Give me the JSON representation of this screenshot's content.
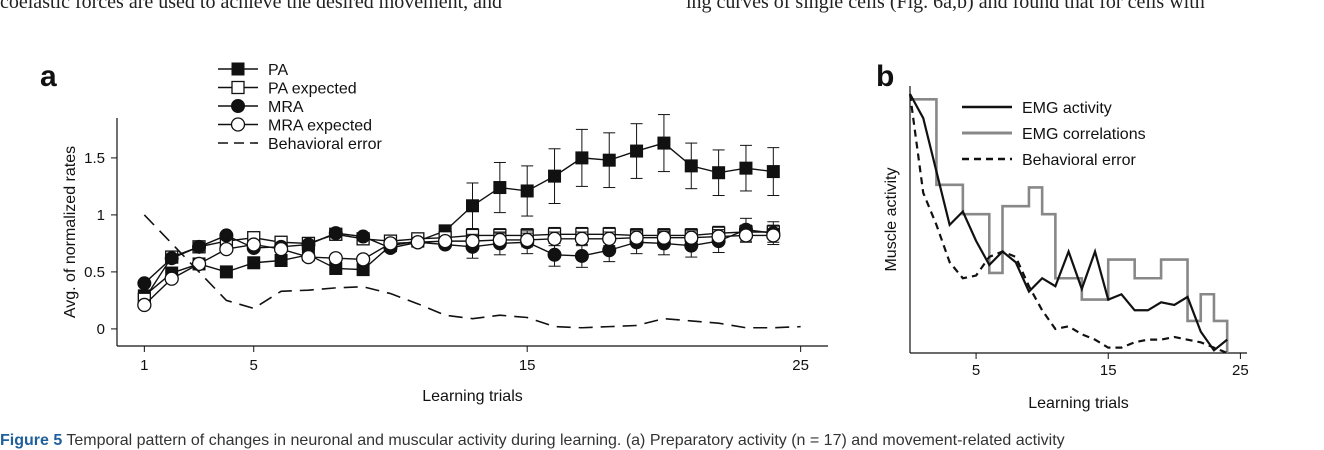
{
  "page_text": {
    "top_left": "coelastic forces are used to achieve the desired movement, and",
    "top_right": "ing curves of single cells (Fig. 6a,b) and found that for cells with",
    "caption_label": "Figure 5",
    "caption_text": "Temporal pattern of changes in neuronal and muscular activity during learning. (a) Preparatory activity (n = 17) and movement-related activity"
  },
  "chart_data": [
    {
      "panel": "a",
      "type": "line",
      "title": "",
      "xlabel": "Learning trials",
      "ylabel": "Avg. of normalized rates",
      "xlim": [
        0,
        26
      ],
      "ylim": [
        -0.15,
        1.85
      ],
      "xticks": [
        1,
        5,
        15,
        25
      ],
      "yticks": [
        0,
        0.5,
        1,
        1.5
      ],
      "ytick_labels": [
        "0",
        "0.5",
        "1",
        "1.5"
      ],
      "legend_position": "top-left",
      "x": [
        1,
        2,
        3,
        4,
        5,
        6,
        7,
        8,
        9,
        10,
        11,
        12,
        13,
        14,
        15,
        16,
        17,
        18,
        19,
        20,
        21,
        22,
        23,
        24
      ],
      "series": [
        {
          "name": "PA",
          "marker": "filled-square",
          "line": "solid",
          "values": [
            0.29,
            0.49,
            0.57,
            0.5,
            0.58,
            0.6,
            0.65,
            0.53,
            0.52,
            0.73,
            0.77,
            0.86,
            1.08,
            1.24,
            1.21,
            1.34,
            1.5,
            1.48,
            1.56,
            1.63,
            1.43,
            1.37,
            1.41,
            1.38
          ],
          "errors": [
            0,
            0,
            0,
            0,
            0,
            0,
            0,
            0,
            0,
            0,
            0,
            0,
            0.2,
            0.22,
            0.22,
            0.24,
            0.25,
            0.24,
            0.24,
            0.25,
            0.2,
            0.2,
            0.2,
            0.21
          ]
        },
        {
          "name": "PA expected",
          "marker": "open-square",
          "line": "solid",
          "values": [
            0.26,
            0.63,
            0.72,
            0.77,
            0.8,
            0.76,
            0.75,
            0.83,
            0.79,
            0.77,
            0.79,
            0.8,
            0.82,
            0.82,
            0.82,
            0.83,
            0.83,
            0.83,
            0.82,
            0.82,
            0.82,
            0.84,
            0.85,
            0.85
          ],
          "errors": [
            0,
            0,
            0,
            0,
            0,
            0,
            0,
            0,
            0,
            0,
            0,
            0,
            0.06,
            0.06,
            0.06,
            0.06,
            0.06,
            0.06,
            0.06,
            0.06,
            0.06,
            0.06,
            0.06,
            0.06
          ]
        },
        {
          "name": "MRA",
          "marker": "filled-circle",
          "line": "solid",
          "values": [
            0.4,
            0.62,
            0.72,
            0.82,
            0.71,
            0.72,
            0.74,
            0.84,
            0.81,
            0.71,
            0.76,
            0.74,
            0.72,
            0.75,
            0.76,
            0.65,
            0.64,
            0.69,
            0.76,
            0.75,
            0.73,
            0.77,
            0.87,
            0.84
          ],
          "errors": [
            0,
            0,
            0,
            0,
            0,
            0,
            0,
            0,
            0,
            0,
            0,
            0,
            0.1,
            0.1,
            0.1,
            0.1,
            0.1,
            0.1,
            0.1,
            0.1,
            0.1,
            0.1,
            0.1,
            0.1
          ]
        },
        {
          "name": "MRA expected",
          "marker": "open-circle",
          "line": "solid",
          "values": [
            0.21,
            0.44,
            0.57,
            0.7,
            0.74,
            0.7,
            0.63,
            0.62,
            0.61,
            0.75,
            0.76,
            0.77,
            0.77,
            0.78,
            0.78,
            0.79,
            0.79,
            0.79,
            0.8,
            0.8,
            0.8,
            0.81,
            0.82,
            0.82
          ],
          "errors": [
            0,
            0,
            0,
            0,
            0,
            0,
            0,
            0,
            0,
            0,
            0,
            0,
            0.06,
            0.06,
            0.06,
            0.06,
            0.06,
            0.06,
            0.06,
            0.06,
            0.06,
            0.06,
            0.06,
            0.06
          ]
        },
        {
          "name": "Behavioral error",
          "marker": "none",
          "line": "dashed",
          "x": [
            1,
            2,
            3,
            4,
            5,
            6,
            7,
            8,
            9,
            10,
            11,
            12,
            13,
            14,
            15,
            16,
            17,
            18,
            19,
            20,
            21,
            22,
            23,
            24,
            25
          ],
          "values": [
            1.0,
            0.75,
            0.5,
            0.25,
            0.18,
            0.33,
            0.34,
            0.36,
            0.37,
            0.31,
            0.22,
            0.12,
            0.09,
            0.12,
            0.1,
            0.02,
            0.01,
            0.02,
            0.03,
            0.09,
            0.07,
            0.05,
            0.01,
            0.01,
            0.02
          ]
        }
      ]
    },
    {
      "panel": "b",
      "type": "line",
      "title": "",
      "xlabel": "Learning trials",
      "ylabel": "Muscle activity",
      "xlim": [
        0,
        25.5
      ],
      "ylim": [
        0,
        1
      ],
      "xticks": [
        5,
        15,
        25
      ],
      "yticks": [],
      "legend_position": "top-right",
      "series": [
        {
          "name": "EMG activity",
          "line": "solid",
          "color": "#111111",
          "x": [
            0,
            1,
            2,
            3,
            4,
            5,
            6,
            7,
            8,
            9,
            10,
            11,
            12,
            13,
            14,
            15,
            16,
            17,
            18,
            19,
            20,
            21,
            22,
            23,
            24
          ],
          "values": [
            0.97,
            0.88,
            0.68,
            0.48,
            0.53,
            0.42,
            0.33,
            0.38,
            0.34,
            0.23,
            0.28,
            0.25,
            0.38,
            0.24,
            0.38,
            0.2,
            0.22,
            0.16,
            0.16,
            0.19,
            0.18,
            0.21,
            0.08,
            0.01,
            0.05
          ]
        },
        {
          "name": "EMG correlations",
          "line": "step",
          "color": "#888888",
          "x": [
            0,
            1,
            2,
            3,
            4,
            5,
            6,
            7,
            8,
            9,
            10,
            11,
            12,
            13,
            14,
            15,
            16,
            17,
            18,
            19,
            20,
            21,
            22,
            23,
            24
          ],
          "values": [
            0.95,
            0.95,
            0.63,
            0.63,
            0.52,
            0.52,
            0.3,
            0.55,
            0.55,
            0.62,
            0.52,
            0.28,
            0.28,
            0.2,
            0.2,
            0.35,
            0.35,
            0.28,
            0.28,
            0.35,
            0.35,
            0.12,
            0.22,
            0.12,
            0.0
          ]
        },
        {
          "name": "Behavioral error",
          "line": "dashed",
          "color": "#111111",
          "x": [
            0,
            1,
            2,
            3,
            4,
            5,
            6,
            7,
            8,
            9,
            10,
            11,
            12,
            13,
            14,
            15,
            16,
            17,
            18,
            19,
            20,
            21,
            22,
            23,
            24
          ],
          "values": [
            0.97,
            0.6,
            0.48,
            0.34,
            0.28,
            0.29,
            0.36,
            0.38,
            0.36,
            0.25,
            0.16,
            0.09,
            0.1,
            0.07,
            0.05,
            0.02,
            0.02,
            0.04,
            0.05,
            0.05,
            0.06,
            0.05,
            0.04,
            0.02,
            0.0
          ]
        }
      ]
    }
  ]
}
